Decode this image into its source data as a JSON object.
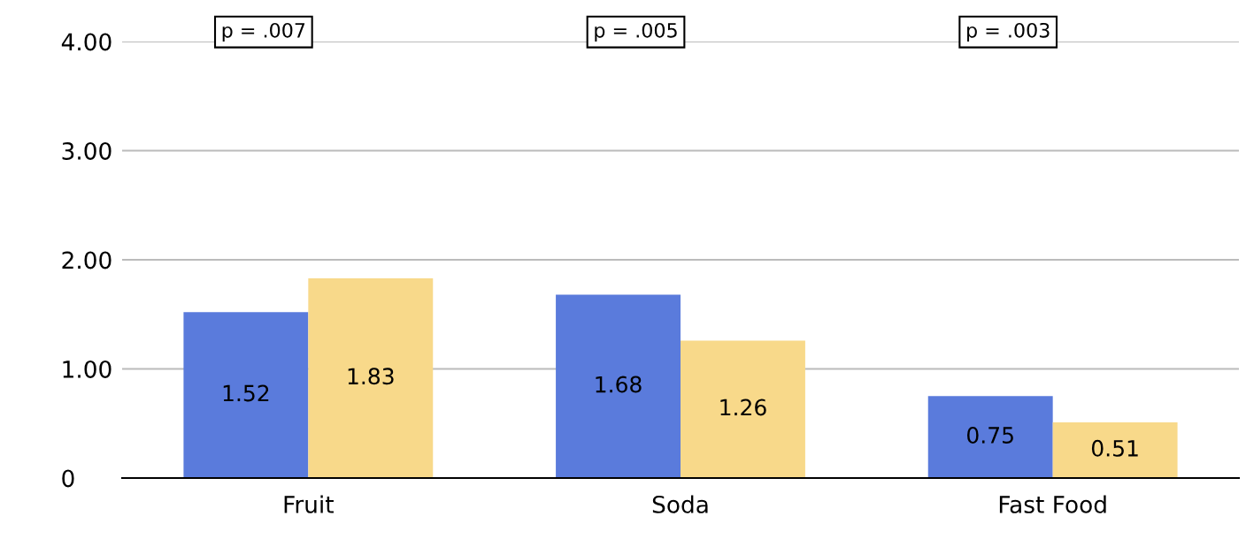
{
  "chart_data": {
    "type": "bar",
    "categories": [
      "Fruit",
      "Soda",
      "Fast Food"
    ],
    "series": [
      {
        "color": "#5a7bdc",
        "values": [
          1.52,
          1.68,
          0.75
        ]
      },
      {
        "color": "#f8d98a",
        "values": [
          1.83,
          1.26,
          0.51
        ]
      }
    ],
    "ylim": [
      0,
      4
    ],
    "yticks": [
      0,
      {
        "value": 1,
        "label": "1.00"
      },
      {
        "value": 2,
        "label": "2.00"
      },
      {
        "value": 3,
        "label": "3.00"
      },
      {
        "value": 4,
        "label": "4.00"
      }
    ],
    "grid": "y",
    "data_labels": true,
    "annotations": [
      "p = .007",
      "p = .005",
      "p = .003"
    ]
  }
}
